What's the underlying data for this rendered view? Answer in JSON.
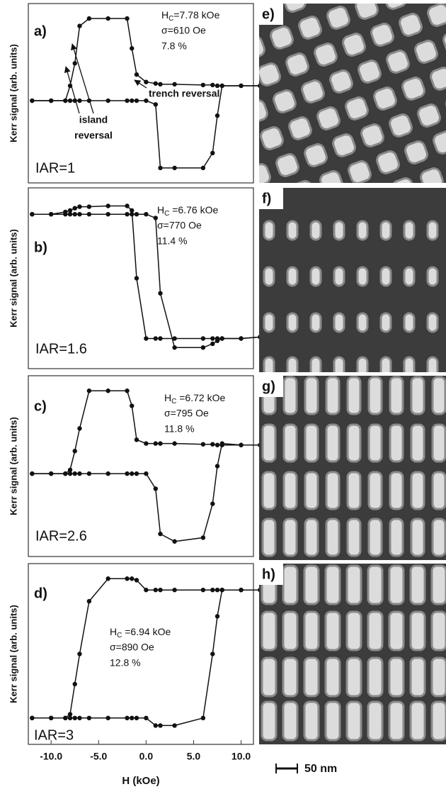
{
  "chart_data": [
    {
      "type": "line",
      "panel_label": "a)",
      "ylabel": "Kerr signal (arb. units)",
      "hc": {
        "symbol": "H",
        "subscript": "C",
        "value": "=7.78 kOe"
      },
      "sigma": "σ=610 Oe",
      "percent": "7.8 %",
      "iar": "IAR=1",
      "callouts": {
        "island": [
          "island",
          "reversal"
        ],
        "trench": "trench reversal"
      },
      "xlim": [
        -12.4,
        11.3
      ],
      "ylim": [
        -1.2,
        1.2
      ],
      "x": [
        -12,
        -10,
        -8.5,
        -8,
        -7.5,
        -7,
        -6,
        -4,
        -2,
        -1.5,
        -1,
        0,
        1,
        1.5,
        3,
        6,
        7,
        7.5,
        8,
        10,
        12
      ],
      "series": [
        {
          "color": "#111111",
          "values": [
            -0.1,
            -0.1,
            -0.1,
            0.1,
            0.4,
            0.9,
            1.0,
            1.0,
            1.0,
            0.6,
            0.25,
            0.15,
            0.13,
            0.12,
            0.12,
            0.11,
            0.11,
            0.1,
            0.1,
            0.1,
            0.1
          ]
        },
        {
          "color": "#111111",
          "values": [
            -0.1,
            -0.1,
            -0.1,
            -0.1,
            -0.1,
            -0.1,
            -0.1,
            -0.1,
            -0.1,
            -0.1,
            -0.1,
            -0.1,
            -0.15,
            -1.0,
            -1.0,
            -1.0,
            -0.8,
            -0.3,
            0.1,
            0.1,
            0.1
          ]
        }
      ]
    },
    {
      "type": "line",
      "panel_label": "b)",
      "ylabel": "Kerr signal (arb. units)",
      "hc": {
        "symbol": "H",
        "subscript": "C",
        "value": " =6.76 kOe"
      },
      "sigma": "σ=770 Oe",
      "percent": "11.4 %",
      "iar": "IAR=1.6",
      "xlim": [
        -12.4,
        11.3
      ],
      "ylim": [
        -1.2,
        1.2
      ],
      "x": [
        -12,
        -10,
        -8.5,
        -8,
        -7.5,
        -7,
        -6,
        -4,
        -2,
        -1.5,
        -1,
        0,
        1,
        1.5,
        3,
        6,
        7,
        7.5,
        8,
        10,
        12
      ],
      "series": [
        {
          "color": "#111111",
          "values": [
            0.85,
            0.85,
            0.88,
            0.9,
            0.93,
            0.95,
            0.95,
            0.96,
            0.96,
            0.9,
            0.0,
            -0.8,
            -0.8,
            -0.8,
            -0.8,
            -0.8,
            -0.8,
            -0.8,
            -0.8,
            -0.8,
            -0.78
          ]
        },
        {
          "color": "#111111",
          "values": [
            0.85,
            0.85,
            0.85,
            0.85,
            0.85,
            0.85,
            0.85,
            0.85,
            0.85,
            0.85,
            0.85,
            0.85,
            0.8,
            -0.2,
            -0.92,
            -0.92,
            -0.87,
            -0.83,
            -0.8,
            -0.8,
            -0.78
          ]
        }
      ]
    },
    {
      "type": "line",
      "panel_label": "c)",
      "ylabel": "Kerr signal (arb. units)",
      "hc": {
        "symbol": "H",
        "subscript": "C",
        "value": " =6.72 kOe"
      },
      "sigma": "σ=795 Oe",
      "percent": "11.8 %",
      "iar": "IAR=2.6",
      "xlim": [
        -12.4,
        11.3
      ],
      "ylim": [
        -1.2,
        1.2
      ],
      "x": [
        -12,
        -10,
        -8.5,
        -8,
        -7.5,
        -7,
        -6,
        -4,
        -2,
        -1.5,
        -1,
        0,
        1,
        1.5,
        3,
        6,
        7,
        7.5,
        8,
        10,
        12
      ],
      "series": [
        {
          "color": "#111111",
          "values": [
            -0.1,
            -0.1,
            -0.1,
            -0.05,
            0.2,
            0.5,
            1.0,
            1.0,
            1.0,
            0.8,
            0.35,
            0.3,
            0.3,
            0.3,
            0.3,
            0.29,
            0.29,
            0.28,
            0.28,
            0.28,
            0.28
          ]
        },
        {
          "color": "#111111",
          "values": [
            -0.1,
            -0.1,
            -0.1,
            -0.1,
            -0.1,
            -0.1,
            -0.1,
            -0.1,
            -0.1,
            -0.1,
            -0.1,
            -0.1,
            -0.3,
            -0.9,
            -1.0,
            -0.95,
            -0.5,
            0.0,
            0.3,
            0.28,
            0.28
          ]
        }
      ]
    },
    {
      "type": "line",
      "panel_label": "d)",
      "ylabel": "Kerr signal (arb. units)",
      "hc": {
        "symbol": "H",
        "subscript": "C",
        "value": " =6.94 kOe"
      },
      "sigma": "σ=890 Oe",
      "percent": "12.8 %",
      "iar": "IAR=3",
      "xlabel": "H (kOe)",
      "xlim": [
        -12.4,
        11.3
      ],
      "ylim": [
        -1.2,
        1.2
      ],
      "xticks": [
        {
          "value": -10,
          "label": "-10.0"
        },
        {
          "value": -5,
          "label": "-5.0"
        },
        {
          "value": 0,
          "label": "0.0"
        },
        {
          "value": 5,
          "label": "5.0"
        },
        {
          "value": 10,
          "label": "10.0"
        }
      ],
      "x": [
        -12,
        -10,
        -8.5,
        -8,
        -7.5,
        -7,
        -6,
        -4,
        -2,
        -1.5,
        -1,
        0,
        1,
        1.5,
        3,
        6,
        7,
        7.5,
        8,
        10,
        12
      ],
      "series": [
        {
          "color": "#111111",
          "values": [
            -0.85,
            -0.85,
            -0.85,
            -0.8,
            -0.4,
            0.0,
            0.7,
            1.0,
            1.0,
            1.0,
            0.98,
            0.85,
            0.85,
            0.85,
            0.85,
            0.85,
            0.85,
            0.85,
            0.85,
            0.85,
            0.85
          ]
        },
        {
          "color": "#111111",
          "values": [
            -0.85,
            -0.85,
            -0.85,
            -0.85,
            -0.85,
            -0.85,
            -0.85,
            -0.85,
            -0.85,
            -0.85,
            -0.85,
            -0.85,
            -0.95,
            -0.95,
            -0.95,
            -0.85,
            0.0,
            0.5,
            0.85,
            0.85,
            0.85
          ]
        }
      ]
    }
  ],
  "images": [
    {
      "label": "e)"
    },
    {
      "label": "f)"
    },
    {
      "label": "g)"
    },
    {
      "label": "h)"
    }
  ],
  "scale_bar": "50 nm"
}
